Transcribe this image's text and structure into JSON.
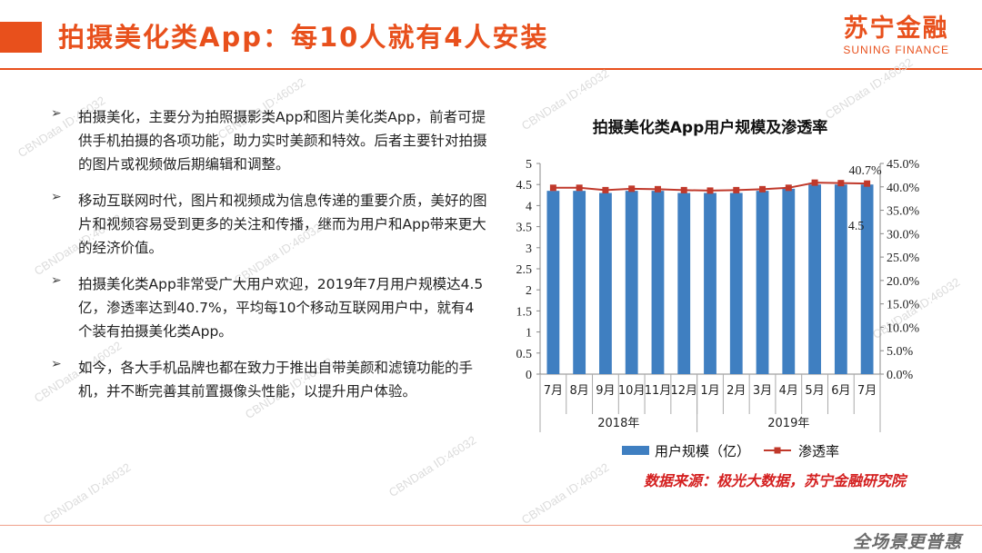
{
  "title": "拍摄美化类App：每10人就有4人安装",
  "logo": {
    "cn": "苏宁金融",
    "en": "SUNING FINANCE"
  },
  "watermark": "CBNData ID:46032",
  "bullets": [
    "拍摄美化，主要分为拍照摄影类App和图片美化类App，前者可提供手机拍摄的各项功能，助力实时美颜和特效。后者主要针对拍摄的图片或视频做后期编辑和调整。",
    "移动互联网时代，图片和视频成为信息传递的重要介质，美好的图片和视频容易受到更多的关注和传播，继而为用户和App带来更大的经济价值。",
    "拍摄美化类App非常受广大用户欢迎，2019年7月用户规模达4.5亿，渗透率达到40.7%，平均每10个移动互联网用户中，就有4个装有拍摄美化类App。",
    "如今，各大手机品牌也都在致力于推出自带美颜和滤镜功能的手机，并不断完善其前置摄像头性能，以提升用户体验。"
  ],
  "chart_data": {
    "type": "bar",
    "title": "拍摄美化类App用户规模及渗透率",
    "categories": [
      "7月",
      "8月",
      "9月",
      "10月",
      "11月",
      "12月",
      "1月",
      "2月",
      "3月",
      "4月",
      "5月",
      "6月",
      "7月"
    ],
    "groups": [
      {
        "label": "2018年",
        "span": 6
      },
      {
        "label": "2019年",
        "span": 7
      }
    ],
    "series": [
      {
        "name": "用户规模（亿）",
        "kind": "bar",
        "axis": "left",
        "color": "#3f7fc1",
        "values": [
          4.35,
          4.35,
          4.3,
          4.35,
          4.35,
          4.3,
          4.3,
          4.3,
          4.35,
          4.4,
          4.5,
          4.5,
          4.5
        ]
      },
      {
        "name": "渗透率",
        "kind": "line",
        "axis": "right",
        "color": "#c0392b",
        "values": [
          39.8,
          39.8,
          39.3,
          39.6,
          39.5,
          39.3,
          39.2,
          39.3,
          39.5,
          39.8,
          40.9,
          40.8,
          40.7
        ]
      }
    ],
    "data_labels": [
      {
        "series": 0,
        "index": 12,
        "text": "4.5"
      },
      {
        "series": 1,
        "index": 12,
        "text": "40.7%"
      }
    ],
    "y_left": {
      "min": 0,
      "max": 5,
      "step": 0.5,
      "ticks": [
        "0",
        "0.5",
        "1",
        "1.5",
        "2",
        "2.5",
        "3",
        "3.5",
        "4",
        "4.5",
        "5"
      ]
    },
    "y_right": {
      "min": 0,
      "max": 45,
      "step": 5,
      "ticks": [
        "0.0%",
        "5.0%",
        "10.0%",
        "15.0%",
        "20.0%",
        "25.0%",
        "30.0%",
        "35.0%",
        "40.0%",
        "45.0%"
      ]
    },
    "legend_position": "bottom",
    "grid": false
  },
  "source": "数据来源：极光大数据，苏宁金融研究院",
  "corner_brand": "全场景更普惠"
}
